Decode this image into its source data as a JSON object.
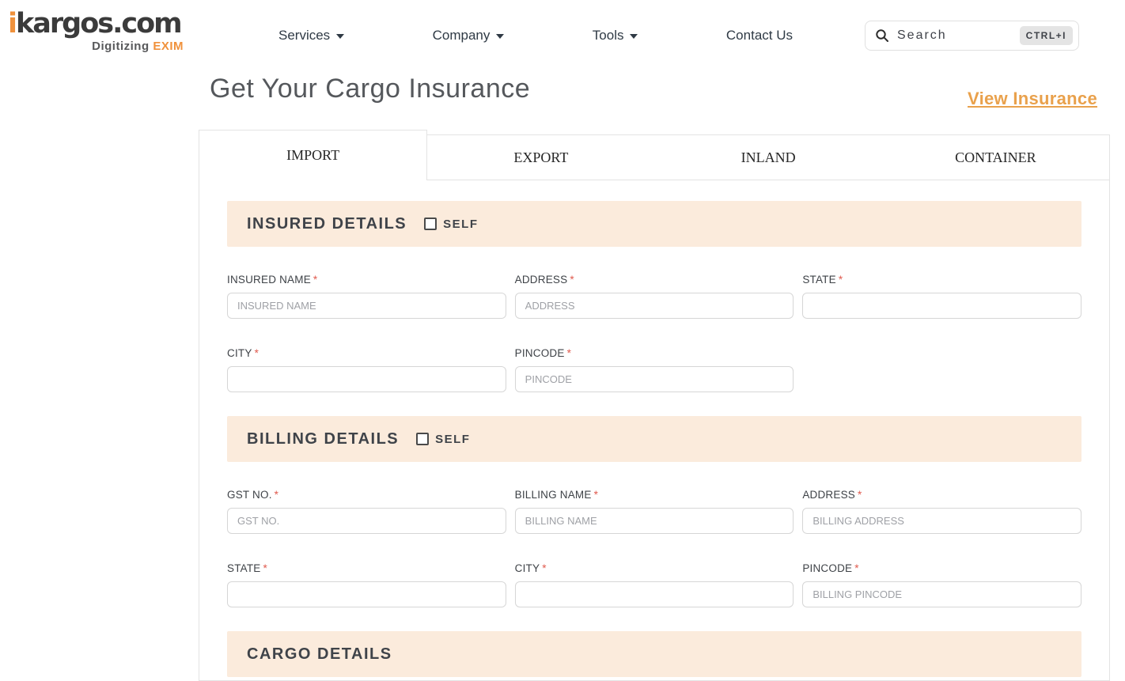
{
  "brand": {
    "logo_i": "i",
    "logo_k": "k",
    "logo_rest": "argos.com",
    "tagline": "Digitizing",
    "tagline_accent": "EXIM"
  },
  "nav": {
    "items": [
      {
        "label": "Services",
        "has_dropdown": true
      },
      {
        "label": "Company",
        "has_dropdown": true
      },
      {
        "label": "Tools",
        "has_dropdown": true
      },
      {
        "label": "Contact Us",
        "has_dropdown": false
      }
    ]
  },
  "search": {
    "placeholder": "Search",
    "shortcut": "CTRL+I",
    "icon": "search-icon"
  },
  "page": {
    "title": "Get Your Cargo Insurance",
    "view_insurance_label": "View Insurance"
  },
  "tabs": [
    {
      "label": "IMPORT",
      "active": true
    },
    {
      "label": "EXPORT",
      "active": false
    },
    {
      "label": "INLAND",
      "active": false
    },
    {
      "label": "CONTAINER",
      "active": false
    }
  ],
  "form": {
    "insured": {
      "title": "INSURED DETAILS",
      "self_label": "SELF",
      "self_checked": false,
      "fields": [
        {
          "label": "INSURED NAME",
          "required": true,
          "placeholder": "INSURED NAME",
          "value": ""
        },
        {
          "label": "ADDRESS",
          "required": true,
          "placeholder": "ADDRESS",
          "value": ""
        },
        {
          "label": "STATE",
          "required": true,
          "placeholder": "",
          "value": ""
        },
        {
          "label": "CITY",
          "required": true,
          "placeholder": "",
          "value": ""
        },
        {
          "label": "PINCODE",
          "required": true,
          "placeholder": "PINCODE",
          "value": ""
        }
      ]
    },
    "billing": {
      "title": "BILLING DETAILS",
      "self_label": "SELF",
      "self_checked": false,
      "fields": [
        {
          "label": "GST NO.",
          "required": true,
          "placeholder": "GST NO.",
          "value": ""
        },
        {
          "label": "BILLING NAME",
          "required": true,
          "placeholder": "BILLING NAME",
          "value": ""
        },
        {
          "label": "ADDRESS",
          "required": true,
          "placeholder": "BILLING ADDRESS",
          "value": ""
        },
        {
          "label": "STATE",
          "required": true,
          "placeholder": "",
          "value": ""
        },
        {
          "label": "CITY",
          "required": true,
          "placeholder": "",
          "value": ""
        },
        {
          "label": "PINCODE",
          "required": true,
          "placeholder": "BILLING PINCODE",
          "value": ""
        }
      ]
    },
    "cargo": {
      "title": "CARGO DETAILS"
    }
  },
  "colors": {
    "accent_orange": "#F0913B",
    "link_orange": "#E9A14C",
    "section_header_bg": "#FBEBDC",
    "required_red": "#E05A4E",
    "text_dark": "#3F4349"
  }
}
